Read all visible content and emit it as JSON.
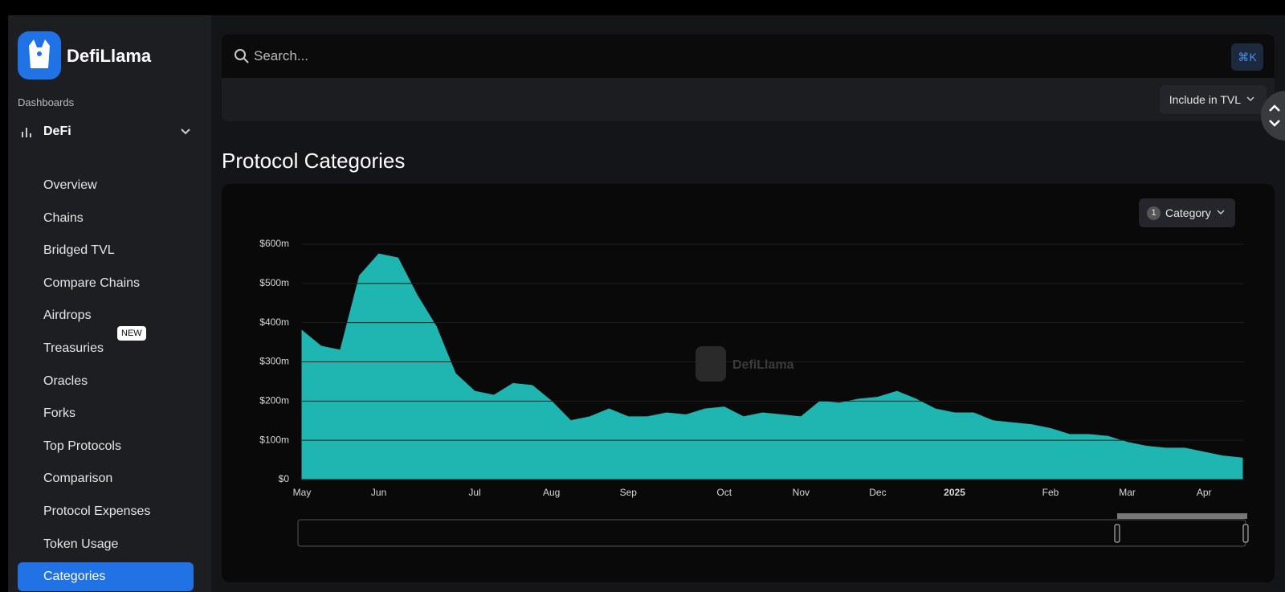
{
  "ui": {
    "brand": "DefiLlama",
    "section": "Dashboards",
    "group": "DeFi",
    "nav": [
      "Overview",
      "Chains",
      "Bridged TVL",
      "Compare Chains",
      "Airdrops",
      "Treasuries",
      "Oracles",
      "Forks",
      "Top Protocols",
      "Comparison",
      "Protocol Expenses",
      "Token Usage",
      "Categories"
    ],
    "new_badge": "NEW",
    "search_placeholder": "Search...",
    "shortcut": "⌘K",
    "include_button": "Include in TVL",
    "category_count": 1,
    "category_button": "Category",
    "watermark": "DefiLlama"
  },
  "chart_data": {
    "type": "area",
    "title": "Protocol Categories",
    "color": "#1fb5b1",
    "categories": [
      "May",
      null,
      null,
      null,
      "Jun",
      null,
      null,
      null,
      null,
      "Jul",
      null,
      null,
      null,
      "Aug",
      null,
      null,
      null,
      "Sep",
      null,
      null,
      null,
      null,
      "Oct",
      null,
      null,
      null,
      "Nov",
      null,
      null,
      null,
      "Dec",
      null,
      null,
      null,
      "2025",
      null,
      null,
      null,
      null,
      "Feb",
      null,
      null,
      null,
      "Mar",
      null,
      null,
      null,
      "Apr",
      null,
      null
    ],
    "values": [
      380,
      340,
      330,
      520,
      575,
      565,
      470,
      390,
      270,
      225,
      215,
      245,
      240,
      200,
      150,
      160,
      180,
      160,
      160,
      170,
      165,
      180,
      185,
      160,
      170,
      165,
      160,
      200,
      195,
      205,
      210,
      225,
      205,
      180,
      170,
      170,
      150,
      145,
      140,
      130,
      115,
      115,
      110,
      95,
      85,
      80,
      80,
      70,
      60,
      55
    ],
    "ylim": [
      0,
      600
    ],
    "yticks": [
      {
        "value": 0,
        "label": "$0"
      },
      {
        "value": 100,
        "label": "$100m"
      },
      {
        "value": 200,
        "label": "$200m"
      },
      {
        "value": 300,
        "label": "$300m"
      },
      {
        "value": 400,
        "label": "$400m"
      },
      {
        "value": 500,
        "label": "$500m"
      },
      {
        "value": 600,
        "label": "$600m"
      }
    ],
    "grid": true
  }
}
